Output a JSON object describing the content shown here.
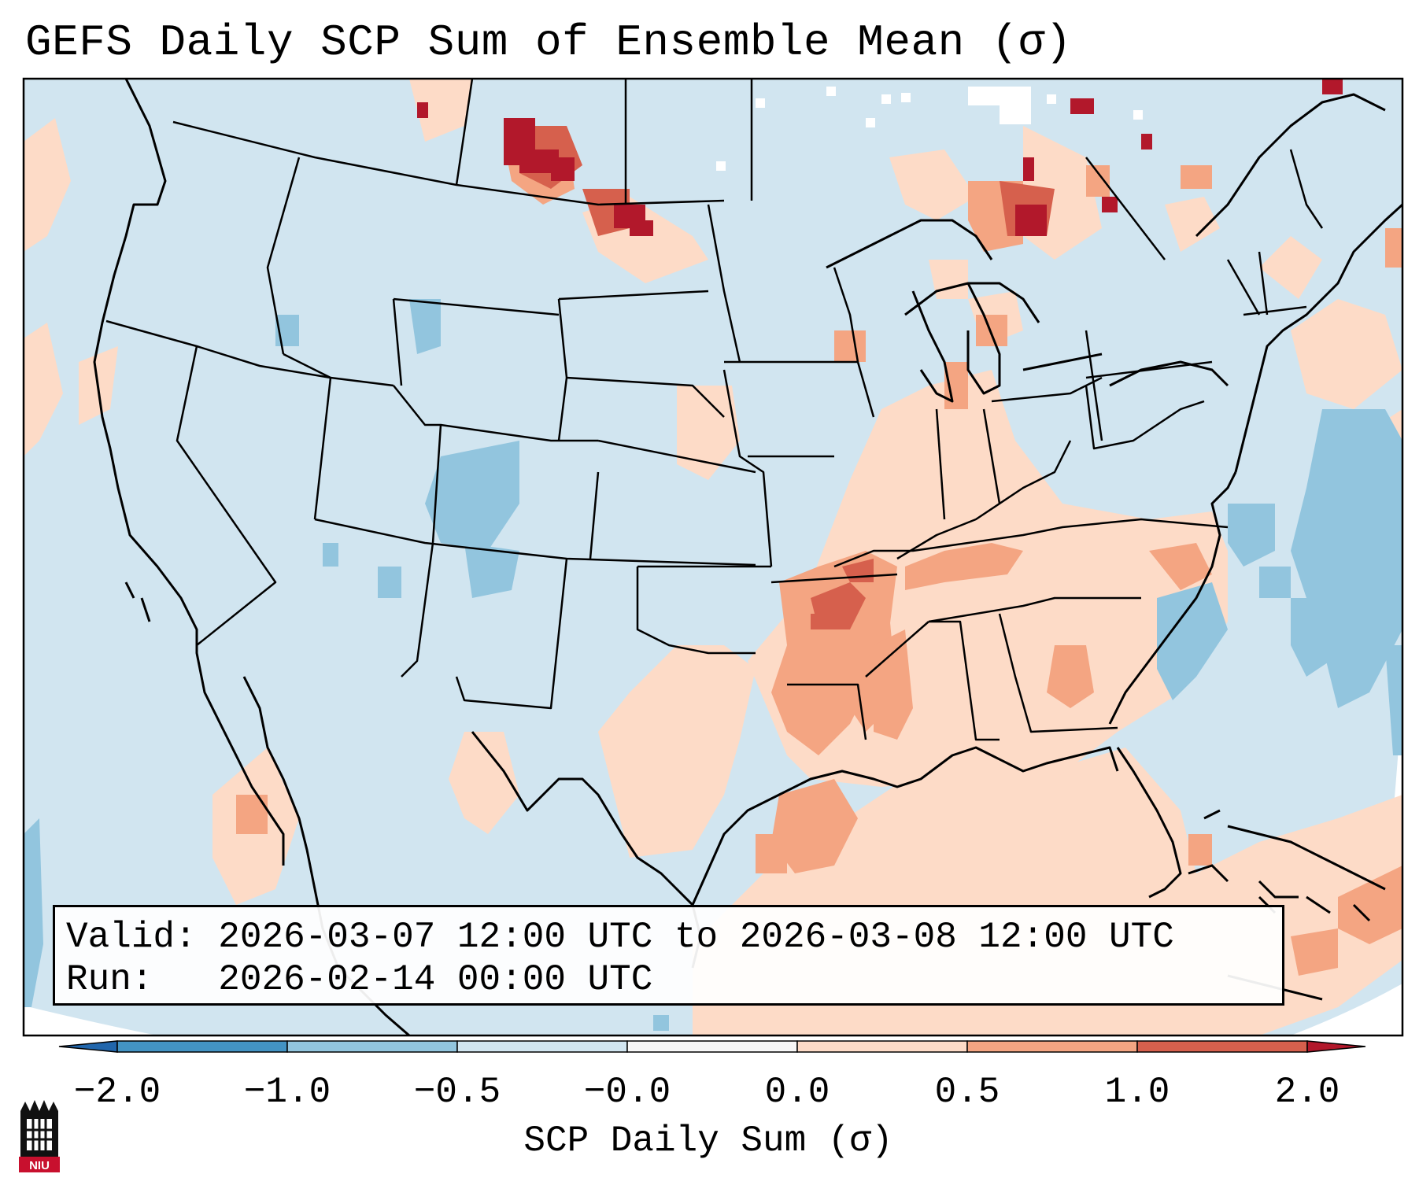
{
  "title": "GEFS Daily SCP Sum of Ensemble Mean (σ)",
  "info": {
    "valid_label": "Valid:",
    "valid_text": "2026-03-07 12:00 UTC to 2026-03-08 12:00 UTC",
    "run_label": "Run:",
    "run_text": "2026-02-14 00:00 UTC"
  },
  "colorbar": {
    "label": "SCP Daily Sum (σ)",
    "ticks": [
      "−2.0",
      "−1.0",
      "−0.5",
      "−0.0",
      "0.0",
      "0.5",
      "1.0",
      "2.0"
    ],
    "colors": [
      "#4393c3",
      "#92c5de",
      "#d1e5f0",
      "#f7f7f7",
      "#fddbc7",
      "#f4a582",
      "#d6604d"
    ],
    "extend_low_color": "#2166ac",
    "extend_high_color": "#b2182b"
  },
  "map": {
    "background_color": "#d1e5f0",
    "outline_color": "#000000"
  },
  "logo": {
    "text": "NIU"
  }
}
